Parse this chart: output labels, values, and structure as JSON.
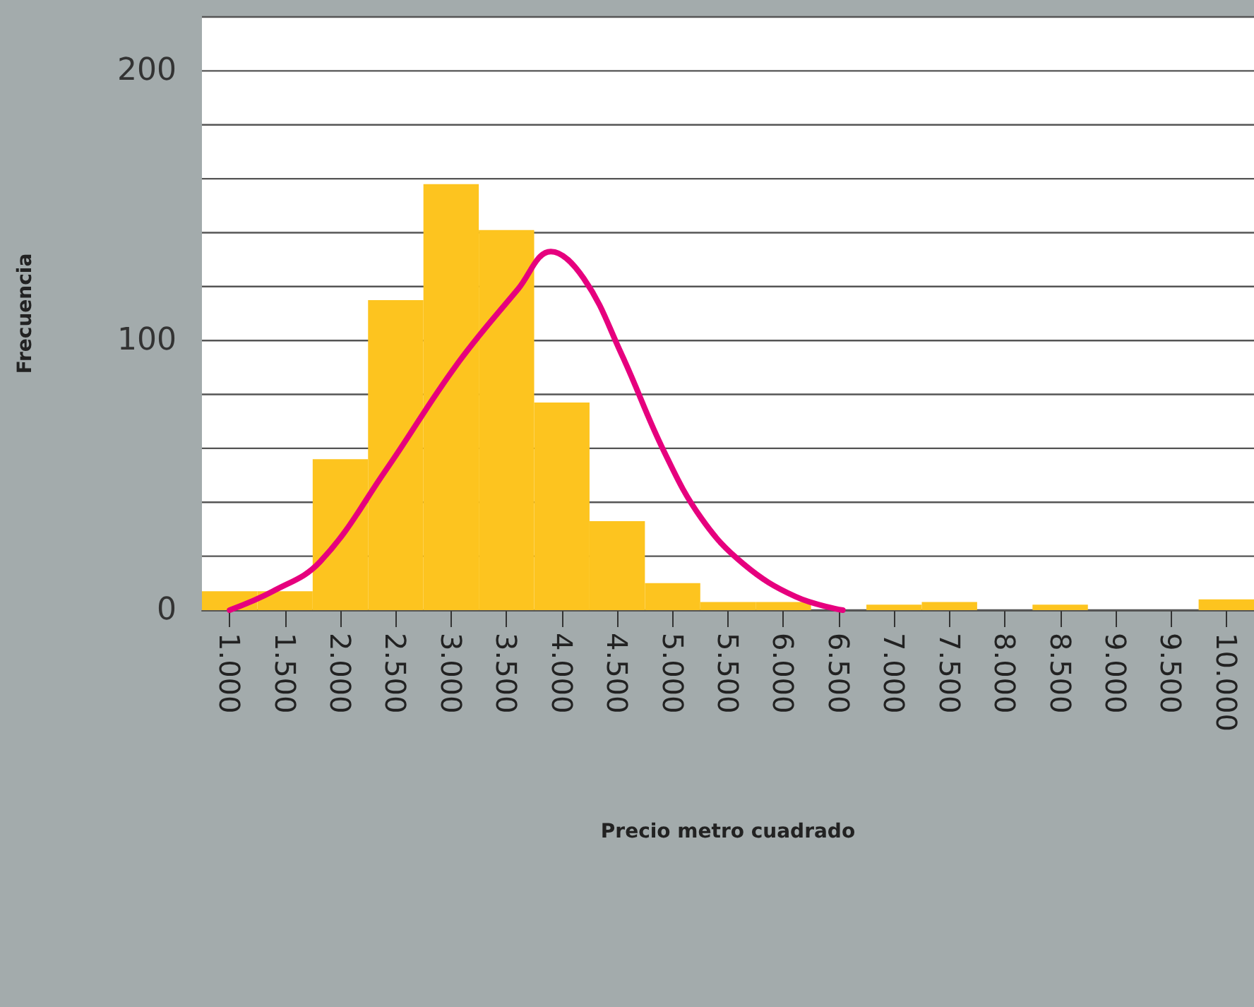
{
  "chart_data": {
    "type": "histogram",
    "xlabel": "Precio metro cuadrado",
    "ylabel": "Frecuencia",
    "bins": [
      750,
      1250,
      1750,
      2250,
      2750,
      3250,
      3750,
      4250,
      4750,
      5250,
      5750,
      6250,
      6750,
      7250,
      7750,
      8250,
      8750,
      9250,
      9750,
      10250
    ],
    "series": [
      {
        "color": "#fdc41f",
        "values": [
          7,
          7,
          56,
          115,
          158,
          141,
          77,
          33,
          10,
          3,
          3,
          0,
          2,
          3,
          0,
          2,
          0,
          0,
          4
        ]
      },
      {
        "type": "line",
        "color": "#e6007e",
        "marker": "none",
        "x": [
          1000,
          1391,
          1818,
          2412,
          3050,
          3603,
          3900,
          4198,
          4538,
          4921,
          5261,
          5644,
          6111,
          6537
        ],
        "values": [
          0,
          7,
          18,
          52,
          91,
          119,
          133,
          123,
          95,
          59,
          34,
          17,
          5,
          0
        ]
      }
    ],
    "xlim": [
      750,
      10250
    ],
    "xticks": [
      {
        "value": 1000,
        "label": "1.000"
      },
      {
        "value": 1500,
        "label": "1.500"
      },
      {
        "value": 2000,
        "label": "2.000"
      },
      {
        "value": 2500,
        "label": "2.500"
      },
      {
        "value": 3000,
        "label": "3.000"
      },
      {
        "value": 3500,
        "label": "3.500"
      },
      {
        "value": 4000,
        "label": "4.000"
      },
      {
        "value": 4500,
        "label": "4.500"
      },
      {
        "value": 5000,
        "label": "5.000"
      },
      {
        "value": 5500,
        "label": "5.500"
      },
      {
        "value": 6000,
        "label": "6.000"
      },
      {
        "value": 6500,
        "label": "6.500"
      },
      {
        "value": 7000,
        "label": "7.000"
      },
      {
        "value": 7500,
        "label": "7.500"
      },
      {
        "value": 8000,
        "label": "8.000"
      },
      {
        "value": 8500,
        "label": "8.500"
      },
      {
        "value": 9000,
        "label": "9.000"
      },
      {
        "value": 9500,
        "label": "9.500"
      },
      {
        "value": 10000,
        "label": "10.000"
      }
    ],
    "ylim": [
      0,
      220
    ],
    "yticks": [
      0,
      {
        "value": 20,
        "label": null
      },
      {
        "value": 40,
        "label": null
      },
      {
        "value": 60,
        "label": null
      },
      {
        "value": 80,
        "label": null
      },
      100,
      {
        "value": 120,
        "label": null
      },
      {
        "value": 140,
        "label": null
      },
      {
        "value": 160,
        "label": null
      },
      {
        "value": 180,
        "label": null
      },
      200,
      {
        "value": 220,
        "label": null
      }
    ],
    "grid": "y"
  }
}
